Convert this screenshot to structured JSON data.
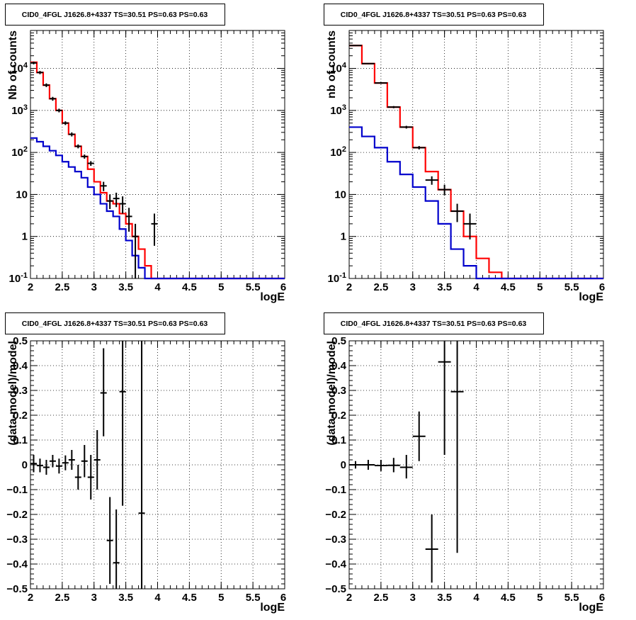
{
  "panels_title": "CID0_4FGL J1626.8+4337 TS=30.51 PS=0.63 PS=0.63",
  "chart_data": [
    {
      "id": "top-left",
      "type": "histogram",
      "title": "CID0_4FGL J1626.8+4337 TS=30.51 PS=0.63 PS=0.63",
      "xlabel": "logE",
      "ylabel": "Nb of counts",
      "xlim": [
        2,
        6
      ],
      "ylim": [
        0.1,
        80000
      ],
      "ylog": true,
      "grid": true,
      "xticks": [
        "2",
        "2.5",
        "3",
        "3.5",
        "4",
        "4.5",
        "5",
        "5.5",
        "6"
      ],
      "yticks": [
        {
          "v": 0.1,
          "label": "10^-1"
        },
        {
          "v": 1,
          "label": "1"
        },
        {
          "v": 10,
          "label": "10"
        },
        {
          "v": 100,
          "label": "10^2"
        },
        {
          "v": 1000,
          "label": "10^3"
        },
        {
          "v": 10000,
          "label": "10^4"
        }
      ],
      "bin_edges": [
        2.0,
        2.1,
        2.2,
        2.3,
        2.4,
        2.5,
        2.6,
        2.7,
        2.8,
        2.9,
        3.0,
        3.1,
        3.2,
        3.3,
        3.4,
        3.5,
        3.6,
        3.7,
        3.8,
        3.9,
        4.0,
        4.1,
        4.2,
        4.3,
        4.4,
        4.5,
        4.6,
        4.7,
        4.8,
        4.9,
        5.0,
        5.1,
        5.2,
        5.3,
        5.4,
        5.5,
        5.6,
        5.7,
        5.8,
        5.9,
        6.0
      ],
      "series": [
        {
          "color": "#ff0000",
          "values": [
            14000,
            8000,
            4000,
            1900,
            1000,
            500,
            270,
            140,
            80,
            40,
            20,
            11,
            7,
            6,
            3.5,
            2,
            1,
            0.5,
            0.2,
            0.1,
            0.1,
            0.1,
            0.1,
            0.1,
            0.1,
            0.1,
            0.1,
            0.1,
            0.1,
            0.1,
            0.1,
            0.1,
            0.1,
            0.1,
            0.1,
            0.1,
            0.1,
            0.1,
            0.1,
            0.1
          ]
        },
        {
          "color": "#0000cc",
          "values": [
            220,
            180,
            140,
            110,
            85,
            60,
            45,
            35,
            25,
            15,
            10,
            6,
            4,
            3,
            1.5,
            0.8,
            0.35,
            0.18,
            0.1,
            0.1,
            0.1,
            0.1,
            0.1,
            0.1,
            0.1,
            0.1,
            0.1,
            0.1,
            0.1,
            0.1,
            0.1,
            0.1,
            0.1,
            0.1,
            0.1,
            0.1,
            0.1,
            0.1,
            0.1,
            0.1
          ]
        }
      ],
      "points": [
        {
          "x": 2.05,
          "y": 13500,
          "ylo": 12500,
          "yhi": 14500
        },
        {
          "x": 2.15,
          "y": 8000,
          "ylo": 7300,
          "yhi": 8700
        },
        {
          "x": 2.25,
          "y": 4000,
          "ylo": 3600,
          "yhi": 4400
        },
        {
          "x": 2.35,
          "y": 1900,
          "ylo": 1700,
          "yhi": 2100
        },
        {
          "x": 2.45,
          "y": 1000,
          "ylo": 900,
          "yhi": 1100
        },
        {
          "x": 2.55,
          "y": 500,
          "ylo": 450,
          "yhi": 550
        },
        {
          "x": 2.65,
          "y": 270,
          "ylo": 240,
          "yhi": 300
        },
        {
          "x": 2.75,
          "y": 140,
          "ylo": 125,
          "yhi": 155
        },
        {
          "x": 2.85,
          "y": 80,
          "ylo": 71,
          "yhi": 89
        },
        {
          "x": 2.95,
          "y": 55,
          "ylo": 48,
          "yhi": 62
        },
        {
          "x": 3.15,
          "y": 16,
          "ylo": 12,
          "yhi": 20
        },
        {
          "x": 3.25,
          "y": 7,
          "ylo": 4.5,
          "yhi": 10
        },
        {
          "x": 3.35,
          "y": 8,
          "ylo": 5,
          "yhi": 11
        },
        {
          "x": 3.45,
          "y": 6,
          "ylo": 3.5,
          "yhi": 9
        },
        {
          "x": 3.55,
          "y": 3,
          "ylo": 1.3,
          "yhi": 4.8
        },
        {
          "x": 3.65,
          "y": 1,
          "ylo": 0.1,
          "yhi": 2
        },
        {
          "x": 3.95,
          "y": 2,
          "ylo": 0.6,
          "yhi": 3.5
        }
      ]
    },
    {
      "id": "top-right",
      "type": "histogram",
      "title": "CID0_4FGL J1626.8+4337 TS=30.51 PS=0.63 PS=0.63",
      "xlabel": "logE",
      "ylabel": "nb of counts",
      "xlim": [
        2,
        6
      ],
      "ylim": [
        0.1,
        80000
      ],
      "ylog": true,
      "grid": true,
      "xticks": [
        "2",
        "2.5",
        "3",
        "3.5",
        "4",
        "4.5",
        "5",
        "5.5",
        "6"
      ],
      "yticks": [
        {
          "v": 0.1,
          "label": "10^-1"
        },
        {
          "v": 1,
          "label": "1"
        },
        {
          "v": 10,
          "label": "10"
        },
        {
          "v": 100,
          "label": "10^2"
        },
        {
          "v": 1000,
          "label": "10^3"
        },
        {
          "v": 10000,
          "label": "10^4"
        }
      ],
      "bin_edges": [
        2.0,
        2.2,
        2.4,
        2.6,
        2.8,
        3.0,
        3.2,
        3.4,
        3.6,
        3.8,
        4.0,
        4.2,
        4.4,
        4.6,
        4.8,
        5.0,
        5.2,
        5.4,
        5.6,
        5.8,
        6.0
      ],
      "series": [
        {
          "color": "#ff0000",
          "values": [
            35000,
            13000,
            4500,
            1200,
            400,
            130,
            35,
            13,
            4,
            1,
            0.3,
            0.14,
            0.1,
            0.1,
            0.1,
            0.1,
            0.1,
            0.1,
            0.1,
            0.1
          ]
        },
        {
          "color": "#0000cc",
          "values": [
            400,
            240,
            130,
            60,
            30,
            15,
            7,
            2,
            0.5,
            0.2,
            0.1,
            0.1,
            0.1,
            0.1,
            0.1,
            0.1,
            0.1,
            0.1,
            0.1,
            0.1
          ]
        }
      ],
      "points": [
        {
          "x": 2.1,
          "y": 35000,
          "ylo": 34000,
          "yhi": 36000
        },
        {
          "x": 2.3,
          "y": 13000,
          "ylo": 12600,
          "yhi": 13400
        },
        {
          "x": 2.5,
          "y": 4500,
          "ylo": 4300,
          "yhi": 4700
        },
        {
          "x": 2.7,
          "y": 1200,
          "ylo": 1130,
          "yhi": 1270
        },
        {
          "x": 2.9,
          "y": 400,
          "ylo": 370,
          "yhi": 430
        },
        {
          "x": 3.1,
          "y": 130,
          "ylo": 118,
          "yhi": 142
        },
        {
          "x": 3.3,
          "y": 22,
          "ylo": 17,
          "yhi": 27
        },
        {
          "x": 3.5,
          "y": 13,
          "ylo": 9.5,
          "yhi": 17
        },
        {
          "x": 3.7,
          "y": 4,
          "ylo": 2.2,
          "yhi": 6
        },
        {
          "x": 3.9,
          "y": 2,
          "ylo": 0.85,
          "yhi": 3.5
        }
      ]
    },
    {
      "id": "bottom-left",
      "type": "residuals",
      "title": "CID0_4FGL J1626.8+4337 TS=30.51 PS=0.63 PS=0.63",
      "xlabel": "logE",
      "ylabel": "(data-model)/model",
      "xlim": [
        2,
        6
      ],
      "ylim": [
        -0.5,
        0.5
      ],
      "grid": true,
      "xticks": [
        "2",
        "2.5",
        "3",
        "3.5",
        "4",
        "4.5",
        "5",
        "5.5",
        "6"
      ],
      "yticks": [
        "-0.5",
        "-0.4",
        "-0.3",
        "-0.2",
        "-0.1",
        "0",
        "0.1",
        "0.2",
        "0.3",
        "0.4",
        "0.5"
      ],
      "points": [
        {
          "x": 2.05,
          "y": 0.005,
          "ylo": -0.03,
          "yhi": 0.04,
          "xw": 0.05
        },
        {
          "x": 2.15,
          "y": -0.003,
          "ylo": -0.03,
          "yhi": 0.025,
          "xw": 0.05
        },
        {
          "x": 2.25,
          "y": -0.01,
          "ylo": -0.04,
          "yhi": 0.02,
          "xw": 0.05
        },
        {
          "x": 2.35,
          "y": 0.015,
          "ylo": -0.01,
          "yhi": 0.04,
          "xw": 0.05
        },
        {
          "x": 2.45,
          "y": -0.005,
          "ylo": -0.035,
          "yhi": 0.025,
          "xw": 0.05
        },
        {
          "x": 2.55,
          "y": 0.008,
          "ylo": -0.022,
          "yhi": 0.038,
          "xw": 0.05
        },
        {
          "x": 2.65,
          "y": 0.02,
          "ylo": -0.02,
          "yhi": 0.06,
          "xw": 0.05
        },
        {
          "x": 2.75,
          "y": -0.05,
          "ylo": -0.1,
          "yhi": 0.0,
          "xw": 0.05
        },
        {
          "x": 2.85,
          "y": 0.015,
          "ylo": -0.05,
          "yhi": 0.08,
          "xw": 0.05
        },
        {
          "x": 2.95,
          "y": -0.05,
          "ylo": -0.14,
          "yhi": 0.04,
          "xw": 0.05
        },
        {
          "x": 3.05,
          "y": 0.02,
          "ylo": -0.1,
          "yhi": 0.14,
          "xw": 0.05
        },
        {
          "x": 3.15,
          "y": 0.29,
          "ylo": 0.115,
          "yhi": 0.47,
          "xw": 0.05
        },
        {
          "x": 3.25,
          "y": -0.305,
          "ylo": -0.48,
          "yhi": -0.13,
          "xw": 0.05
        },
        {
          "x": 3.35,
          "y": -0.395,
          "ylo": -0.5,
          "yhi": -0.18,
          "xw": 0.05
        },
        {
          "x": 3.45,
          "y": 0.295,
          "ylo": -0.165,
          "yhi": 0.5,
          "xw": 0.05
        },
        {
          "x": 3.75,
          "y": -0.195,
          "ylo": -0.5,
          "yhi": 0.5,
          "xw": 0.05
        }
      ]
    },
    {
      "id": "bottom-right",
      "type": "residuals",
      "title": "CID0_4FGL J1626.8+4337 TS=30.51 PS=0.63 PS=0.63",
      "xlabel": "logE",
      "ylabel": "(data-model)/model",
      "xlim": [
        2,
        6
      ],
      "ylim": [
        -0.5,
        0.5
      ],
      "grid": true,
      "xticks": [
        "2",
        "2.5",
        "3",
        "3.5",
        "4",
        "4.5",
        "5",
        "5.5",
        "6"
      ],
      "yticks": [
        "-0.5",
        "-0.4",
        "-0.3",
        "-0.2",
        "-0.1",
        "0",
        "0.1",
        "0.2",
        "0.3",
        "0.4",
        "0.5"
      ],
      "points": [
        {
          "x": 2.1,
          "y": 0.0,
          "ylo": -0.015,
          "yhi": 0.015,
          "xw": 0.1
        },
        {
          "x": 2.3,
          "y": 0.0,
          "ylo": -0.02,
          "yhi": 0.02,
          "xw": 0.1
        },
        {
          "x": 2.5,
          "y": -0.003,
          "ylo": -0.025,
          "yhi": 0.02,
          "xw": 0.1
        },
        {
          "x": 2.7,
          "y": -0.002,
          "ylo": -0.03,
          "yhi": 0.028,
          "xw": 0.1
        },
        {
          "x": 2.9,
          "y": -0.01,
          "ylo": -0.055,
          "yhi": 0.04,
          "xw": 0.1
        },
        {
          "x": 3.1,
          "y": 0.115,
          "ylo": 0.015,
          "yhi": 0.215,
          "xw": 0.1
        },
        {
          "x": 3.3,
          "y": -0.34,
          "ylo": -0.475,
          "yhi": -0.2,
          "xw": 0.1
        },
        {
          "x": 3.5,
          "y": 0.415,
          "ylo": 0.04,
          "yhi": 0.5,
          "xw": 0.1
        },
        {
          "x": 3.7,
          "y": 0.295,
          "ylo": -0.355,
          "yhi": 0.5,
          "xw": 0.1
        }
      ]
    }
  ]
}
